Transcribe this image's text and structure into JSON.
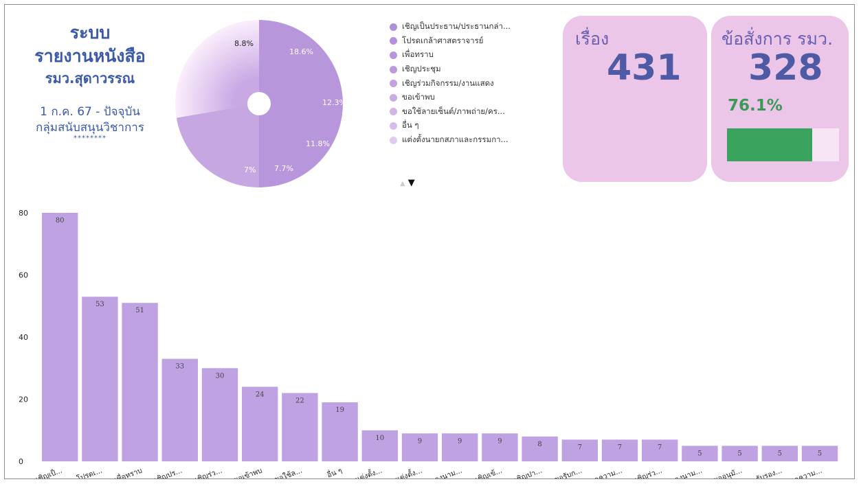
{
  "header": {
    "line1": "ระบบ",
    "line2": "รายงานหนังสือ",
    "line3": "รมว.สุดาวรรณ",
    "date_range": "1 ก.ค. 67 - ปัจจุบัน",
    "group": "กลุ่มสนับสนุนวิชาการ",
    "stars": "********"
  },
  "pie": {
    "labels": [
      "8.8%",
      "18.6%",
      "12.3%",
      "11.8%",
      "7.7%",
      "7%"
    ]
  },
  "legend": {
    "items": [
      "เชิญเป็นประธาน/ประธานกล่า...",
      "โปรดเกล้าศาสตราจารย์",
      "เพื่อทราบ",
      "เชิญประชุม",
      "เชิญร่วมกิจกรรม/งานแสดง",
      "ขอเข้าพบ",
      "ขอใช้ลายเซ็นต์/ภาพถ่าย/คร...",
      "อื่น ๆ",
      "แต่งตั้งนายกสภาและกรรมกา..."
    ],
    "colors": [
      "#b08fd8",
      "#b491da",
      "#b895dc",
      "#bd9ade",
      "#c3a2e0",
      "#caaae3",
      "#d2b4e7",
      "#dabdeb",
      "#e3c9ef"
    ],
    "pager_up": "▲",
    "pager_down": "▼"
  },
  "card_total": {
    "label": "เรื่อง",
    "value": "431"
  },
  "card_orders": {
    "label": "ข้อสั่งการ รมว.",
    "value": "328",
    "percent_text": "76.1%",
    "progress": 0.761
  },
  "chart_data": {
    "type": "bar",
    "categories": [
      "เชิญเป็...",
      "โปรดเ...",
      "เพื่อทราบ",
      "เชิญปร...",
      "เชิญร่ว...",
      "ขอเข้าพบ",
      "ขอใช้ล...",
      "อื่น ๆ",
      "แต่งตั้ง...",
      "แต่งตั้ง...",
      "ลงนาม...",
      "เชิญเข้...",
      "เชิญปา...",
      "ขอรับก...",
      "ขอความ...",
      "เชิญร่ว...",
      "ลงนาม...",
      "ขออนุมั...",
      "รับรอง...",
      "ขอความ..."
    ],
    "values": [
      80,
      53,
      51,
      33,
      30,
      24,
      22,
      19,
      10,
      9,
      9,
      9,
      8,
      7,
      7,
      7,
      5,
      5,
      5,
      5
    ],
    "yticks": [
      0,
      20,
      40,
      60,
      80
    ],
    "ylim": [
      0,
      85
    ],
    "bar_color": "#bea2e2",
    "grid": false
  }
}
